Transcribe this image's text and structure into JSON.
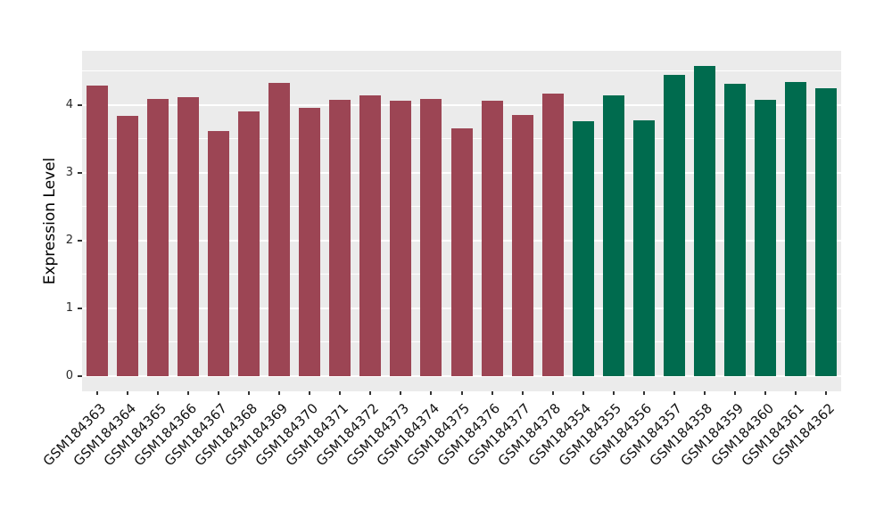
{
  "chart_data": {
    "type": "bar",
    "title": "",
    "xlabel": "",
    "ylabel": "Expression Level",
    "yticks": [
      0,
      1,
      2,
      3,
      4
    ],
    "ylim": [
      0,
      4.57
    ],
    "grid": true,
    "legend": "none",
    "panel_bg": "#ebebeb",
    "grid_color": "#ffffff",
    "group_colors": {
      "groupA": "#9c4554",
      "groupB": "#006b4e"
    },
    "bars": [
      {
        "label": "GSM184363",
        "value": 4.29,
        "group": "groupA"
      },
      {
        "label": "GSM184364",
        "value": 3.84,
        "group": "groupA"
      },
      {
        "label": "GSM184365",
        "value": 4.09,
        "group": "groupA"
      },
      {
        "label": "GSM184366",
        "value": 4.12,
        "group": "groupA"
      },
      {
        "label": "GSM184367",
        "value": 3.61,
        "group": "groupA"
      },
      {
        "label": "GSM184368",
        "value": 3.91,
        "group": "groupA"
      },
      {
        "label": "GSM184369",
        "value": 4.33,
        "group": "groupA"
      },
      {
        "label": "GSM184370",
        "value": 3.96,
        "group": "groupA"
      },
      {
        "label": "GSM184371",
        "value": 4.08,
        "group": "groupA"
      },
      {
        "label": "GSM184372",
        "value": 4.14,
        "group": "groupA"
      },
      {
        "label": "GSM184373",
        "value": 4.06,
        "group": "groupA"
      },
      {
        "label": "GSM184374",
        "value": 4.09,
        "group": "groupA"
      },
      {
        "label": "GSM184375",
        "value": 3.66,
        "group": "groupA"
      },
      {
        "label": "GSM184376",
        "value": 4.06,
        "group": "groupA"
      },
      {
        "label": "GSM184377",
        "value": 3.85,
        "group": "groupA"
      },
      {
        "label": "GSM184378",
        "value": 4.17,
        "group": "groupA"
      },
      {
        "label": "GSM184354",
        "value": 3.76,
        "group": "groupB"
      },
      {
        "label": "GSM184355",
        "value": 4.14,
        "group": "groupB"
      },
      {
        "label": "GSM184356",
        "value": 3.77,
        "group": "groupB"
      },
      {
        "label": "GSM184357",
        "value": 4.44,
        "group": "groupB"
      },
      {
        "label": "GSM184358",
        "value": 4.57,
        "group": "groupB"
      },
      {
        "label": "GSM184359",
        "value": 4.31,
        "group": "groupB"
      },
      {
        "label": "GSM184360",
        "value": 4.07,
        "group": "groupB"
      },
      {
        "label": "GSM184361",
        "value": 4.34,
        "group": "groupB"
      },
      {
        "label": "GSM184362",
        "value": 4.25,
        "group": "groupB"
      }
    ]
  }
}
